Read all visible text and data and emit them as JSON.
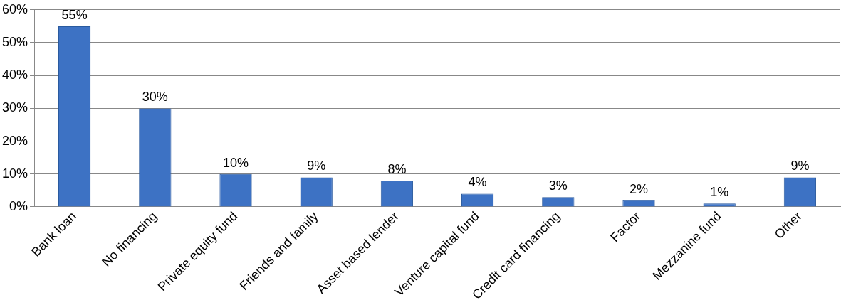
{
  "chart_data": {
    "type": "bar",
    "categories": [
      "Bank loan",
      "No financing",
      "Private equity fund",
      "Friends and family",
      "Asset based lender",
      "Venture capital fund",
      "Credit card financing",
      "Factor",
      "Mezzanine fund",
      "Other"
    ],
    "values": [
      55,
      30,
      10,
      9,
      8,
      4,
      3,
      2,
      1,
      9
    ],
    "value_labels": [
      "55%",
      "30%",
      "10%",
      "9%",
      "8%",
      "4%",
      "3%",
      "2%",
      "1%",
      "9%"
    ],
    "color": "#3d72c4",
    "ylim": [
      0,
      60
    ],
    "yticks": [
      {
        "value": 0,
        "label": "0%"
      },
      {
        "value": 10,
        "label": "10%"
      },
      {
        "value": 20,
        "label": "20%"
      },
      {
        "value": 30,
        "label": "30%"
      },
      {
        "value": 40,
        "label": "40%"
      },
      {
        "value": 50,
        "label": "50%"
      },
      {
        "value": 60,
        "label": "60%"
      }
    ],
    "grid": "y",
    "legend": false
  }
}
